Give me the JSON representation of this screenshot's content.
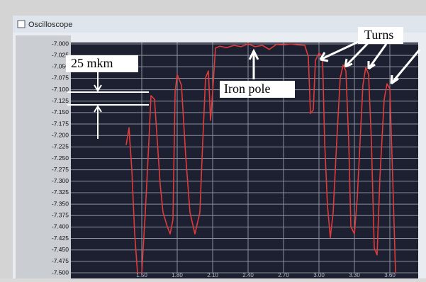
{
  "window": {
    "title": "Oscilloscope"
  },
  "chart_data": {
    "type": "line",
    "annotations": [
      "25 mkm",
      "Iron pole",
      "Turns"
    ],
    "x": [
      1.368,
      1.392,
      1.416,
      1.44,
      1.464,
      1.5,
      1.53,
      1.56,
      1.578,
      1.608,
      1.632,
      1.656,
      1.68,
      1.716,
      1.74,
      1.764,
      1.782,
      1.8,
      1.836,
      1.872,
      1.908,
      1.95,
      1.992,
      2.016,
      2.04,
      2.064,
      2.082,
      2.1,
      2.124,
      2.16,
      2.22,
      2.28,
      2.34,
      2.4,
      2.46,
      2.52,
      2.58,
      2.64,
      2.7,
      2.76,
      2.82,
      2.88,
      2.91,
      2.928,
      2.952,
      2.97,
      3.0,
      3.03,
      3.048,
      3.072,
      3.096,
      3.12,
      3.15,
      3.18,
      3.204,
      3.228,
      3.252,
      3.27,
      3.3,
      3.324,
      3.348,
      3.372,
      3.396,
      3.42,
      3.444,
      3.468,
      3.492,
      3.516,
      3.552,
      3.576,
      3.6,
      3.624,
      3.648
    ],
    "series": [
      {
        "color": "#e03a3a",
        "values": [
          -7.221,
          -7.183,
          -7.276,
          -7.415,
          -7.5,
          -7.5,
          -7.368,
          -7.214,
          -7.113,
          -7.121,
          -7.214,
          -7.307,
          -7.368,
          -7.399,
          -7.415,
          -7.384,
          -7.105,
          -7.067,
          -7.09,
          -7.245,
          -7.368,
          -7.415,
          -7.368,
          -7.214,
          -7.074,
          -7.059,
          -7.167,
          -7.105,
          -7.009,
          -7.005,
          -7.008,
          -7.003,
          -7.006,
          -7.0,
          -7.006,
          -7.003,
          -7.012,
          -7.001,
          -7.002,
          -7.0,
          -7.002,
          -7.003,
          -7.028,
          -7.152,
          -7.144,
          -7.036,
          -7.02,
          -7.028,
          -7.214,
          -7.353,
          -7.423,
          -7.368,
          -7.214,
          -7.074,
          -7.046,
          -7.059,
          -7.214,
          -7.399,
          -7.415,
          -7.337,
          -7.214,
          -7.09,
          -7.051,
          -7.067,
          -7.214,
          -7.446,
          -7.461,
          -7.291,
          -7.121,
          -7.087,
          -7.098,
          -7.291,
          -7.5
        ]
      }
    ],
    "xlim": [
      0.9,
      3.84
    ],
    "xticks": [
      {
        "value": 1.5,
        "label": "1.50"
      },
      {
        "value": 1.8,
        "label": "1.80"
      },
      {
        "value": 2.1,
        "label": "2.10"
      },
      {
        "value": 2.4,
        "label": "2.40"
      },
      {
        "value": 2.7,
        "label": "2.70"
      },
      {
        "value": 3.0,
        "label": "3.00"
      },
      {
        "value": 3.3,
        "label": "3.30"
      },
      {
        "value": 3.6,
        "label": "3.60"
      }
    ],
    "ylim": [
      -7.5,
      -7.0
    ],
    "yticks": [
      {
        "value": -7.0,
        "label": "-7.000"
      },
      -7.025,
      {
        "value": -7.05,
        "label": "-7.050"
      },
      -7.075,
      {
        "value": -7.1,
        "label": "-7.100"
      },
      -7.125,
      {
        "value": -7.15,
        "label": "-7.150"
      },
      -7.175,
      {
        "value": -7.2,
        "label": "-7.200"
      },
      -7.225,
      {
        "value": -7.25,
        "label": "-7.250"
      },
      -7.275,
      {
        "value": -7.3,
        "label": "-7.300"
      },
      -7.325,
      {
        "value": -7.35,
        "label": "-7.350"
      },
      -7.375,
      {
        "value": -7.4,
        "label": "-7.400"
      },
      -7.425,
      {
        "value": -7.45,
        "label": "-7.450"
      },
      -7.475,
      {
        "value": -7.5,
        "label": "-7.500"
      }
    ],
    "grid": true
  }
}
